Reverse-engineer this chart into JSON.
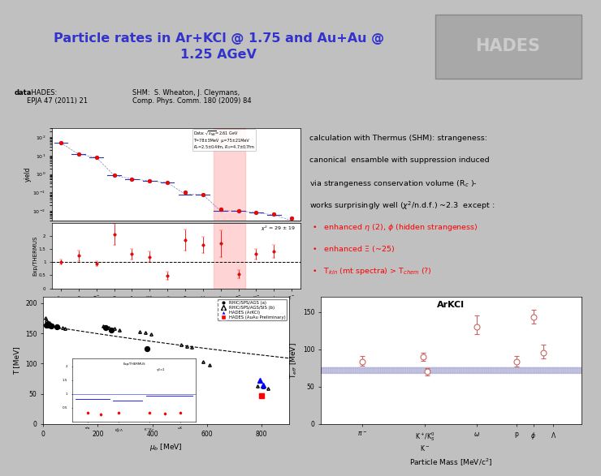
{
  "title": "Particle rates in Ar+KCl @ 1.75 and Au+Au @\n1.25 AGeV",
  "title_color": "#3333cc",
  "bg_color": "#c0c0c0",
  "header_bg": "#b0b0b0",
  "data_label_bold": "data",
  "data_label_rest": ": HADES:\nEPJA 47 (2011) 21",
  "shm_label": "SHM:  S. Wheaton, J. Cleymans,\nComp. Phys. Comm. 180 (2009) 84",
  "top_particles": [
    "A$_{cnt}$",
    "$\\rho$",
    "$\\pi^-$",
    "$\\eta$",
    "$\\Lambda$",
    "K$^+$",
    "K$^0_S$",
    "$\\Sigma$",
    "$\\omega$",
    "$\\Sigma^{*+}$",
    "$\\Sigma^{-}$",
    "K$^-$",
    "$\\phi$",
    "$\\Xi^-$"
  ],
  "top_yields": [
    50,
    12,
    8,
    0.85,
    0.55,
    0.42,
    0.35,
    0.1,
    0.08,
    0.012,
    0.01,
    0.008,
    0.007,
    0.004
  ],
  "top_theory": [
    50,
    12,
    8,
    0.85,
    0.55,
    0.42,
    0.35,
    0.08,
    0.075,
    0.01,
    0.01,
    0.008,
    0.006,
    0.003
  ],
  "ratio_values": [
    1.0,
    1.25,
    0.95,
    2.05,
    1.3,
    1.2,
    0.48,
    1.85,
    1.65,
    1.7,
    0.55,
    1.3,
    1.4,
    null
  ],
  "ratio_errors": [
    0.1,
    0.2,
    0.1,
    0.4,
    0.2,
    0.2,
    0.15,
    0.4,
    0.3,
    0.5,
    0.15,
    0.2,
    0.25,
    null
  ],
  "right_text_lines": [
    "calculation with Thermus (SHM): strangeness:",
    "canonical  ensamble with suppression induced",
    "via strangeness conservation volume (R$_c$ )-",
    "works surprisingly well ($\\chi^2$/n.d.f.) ~2.3  except :",
    "BULLET  enhanced $\\eta$ (2), $\\phi$ (hidden strangeness)",
    "BULLET  enhanced $\\Xi$ (~25)",
    "BULLET  T$_{kin}$ (mt spectra) > T$_{chem}$ (?)"
  ],
  "teff_title": "ArKCl",
  "teff_data": [
    {
      "mass": 200,
      "val": 83,
      "err_lo": 5,
      "err_hi": 8
    },
    {
      "mass": 490,
      "val": 90,
      "err_lo": 5,
      "err_hi": 6
    },
    {
      "mass": 510,
      "val": 70,
      "err_lo": 5,
      "err_hi": 5
    },
    {
      "mass": 750,
      "val": 130,
      "err_lo": 10,
      "err_hi": 15
    },
    {
      "mass": 940,
      "val": 83,
      "err_lo": 6,
      "err_hi": 8
    },
    {
      "mass": 1020,
      "val": 143,
      "err_lo": 8,
      "err_hi": 10
    },
    {
      "mass": 1070,
      "val": 96,
      "err_lo": 8,
      "err_hi": 10
    }
  ],
  "teff_band_lo": 68,
  "teff_band_hi": 76,
  "teff_band_color": "#9999cc",
  "teff_xtick_pos": [
    200,
    500,
    750,
    940,
    1020,
    1116
  ],
  "teff_xtick_labels": [
    "$\\pi^-$",
    "K$^+$/K$^0_S$\nK$^-$",
    "$\\omega$",
    "p",
    "$\\phi$",
    "$\\Lambda$"
  ]
}
